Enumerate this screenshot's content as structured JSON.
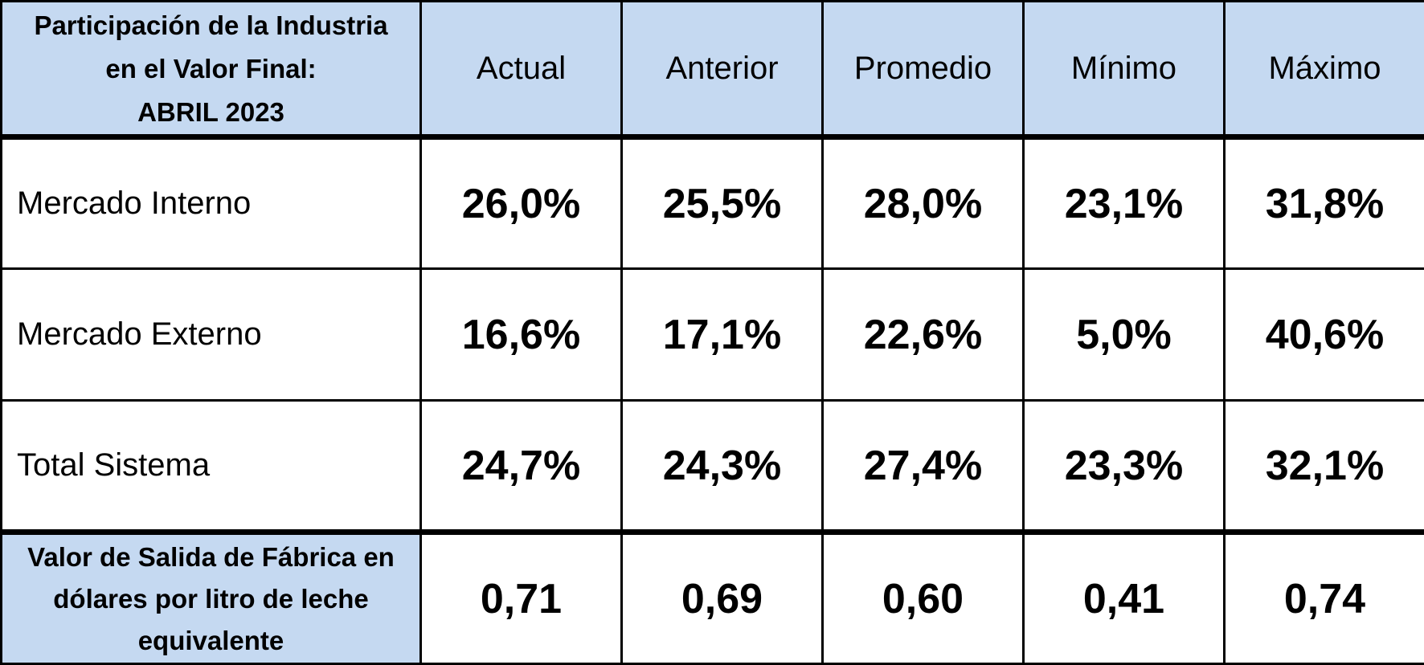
{
  "chart_data": {
    "type": "table",
    "header": {
      "corner_lines": [
        "Participación de la Industria",
        "en el Valor Final:",
        "ABRIL 2023"
      ],
      "columns": [
        "Actual",
        "Anterior",
        "Promedio",
        "Mínimo",
        "Máximo"
      ]
    },
    "rows": [
      {
        "label": "Mercado Interno",
        "values": [
          "26,0%",
          "25,5%",
          "28,0%",
          "23,1%",
          "31,8%"
        ]
      },
      {
        "label": "Mercado Externo",
        "values": [
          "16,6%",
          "17,1%",
          "22,6%",
          "5,0%",
          "40,6%"
        ]
      },
      {
        "label": "Total Sistema",
        "values": [
          "24,7%",
          "24,3%",
          "27,4%",
          "23,3%",
          "32,1%"
        ]
      }
    ],
    "footer_row": {
      "label_lines": [
        "Valor de Salida de Fábrica en",
        "dólares por litro de leche",
        "equivalente"
      ],
      "values": [
        "0,71",
        "0,69",
        "0,60",
        "0,41",
        "0,74"
      ]
    }
  },
  "colors": {
    "header_fill": "#c5d9f1",
    "border": "#000000",
    "text": "#000000"
  }
}
